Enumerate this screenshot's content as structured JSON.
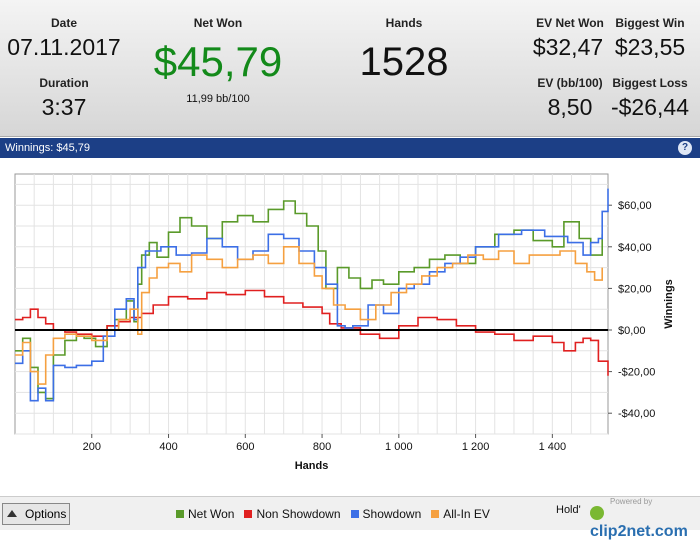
{
  "summary": {
    "date_label": "Date",
    "date_value": "07.11.2017",
    "duration_label": "Duration",
    "duration_value": "3:37",
    "net_won_label": "Net Won",
    "net_won_value": "$45,79",
    "net_won_sub": "11,99 bb/100",
    "hands_label": "Hands",
    "hands_value": "1528",
    "ev_net_won_label": "EV Net Won",
    "ev_net_won_value": "$32,47",
    "biggest_win_label": "Biggest Win",
    "biggest_win_value": "$23,55",
    "ev_bb_label": "EV (bb/100)",
    "ev_bb_value": "8,50",
    "biggest_loss_label": "Biggest Loss",
    "biggest_loss_value": "-$26,44",
    "net_won_color": "#138a1a"
  },
  "titlebar": {
    "text": "Winnings:  $45,79",
    "help": "?"
  },
  "footer": {
    "options_label": "Options",
    "holdem_label": "Hold'",
    "powered_label": "Powered by",
    "brand_label": "clip2net.com"
  },
  "chart_data": {
    "type": "line",
    "xlabel": "Hands",
    "ylabel": "Winnings",
    "xlim": [
      0,
      1545
    ],
    "ylim": [
      -50,
      75
    ],
    "x_ticks": [
      200,
      400,
      600,
      800,
      1000,
      1200,
      1400
    ],
    "x_tick_labels": [
      "200",
      "400",
      "600",
      "800",
      "1 000",
      "1 200",
      "1 400"
    ],
    "y_ticks": [
      60,
      40,
      20,
      0,
      -20,
      -40
    ],
    "y_tick_labels": [
      "$60,00",
      "$40,00",
      "$20,00",
      "$0,00",
      "-$20,00",
      "-$40,00"
    ],
    "grid": true,
    "legend_position": "bottom",
    "series": [
      {
        "name": "Net Won",
        "color": "#5a9a2a",
        "x": [
          0,
          20,
          40,
          60,
          80,
          100,
          130,
          160,
          180,
          210,
          240,
          260,
          290,
          310,
          320,
          330,
          350,
          370,
          400,
          430,
          460,
          500,
          540,
          580,
          620,
          660,
          700,
          730,
          760,
          790,
          810,
          840,
          870,
          900,
          930,
          960,
          1000,
          1040,
          1080,
          1120,
          1160,
          1200,
          1250,
          1300,
          1350,
          1400,
          1430,
          1470,
          1500,
          1530
        ],
        "y": [
          -10,
          -4,
          -18,
          -30,
          -33,
          -12,
          -5,
          -3,
          -4,
          -8,
          2,
          5,
          14,
          4,
          22,
          36,
          42,
          35,
          47,
          54,
          50,
          44,
          52,
          55,
          52,
          58,
          62,
          56,
          50,
          38,
          20,
          30,
          25,
          20,
          24,
          22,
          28,
          30,
          34,
          36,
          32,
          40,
          46,
          48,
          43,
          40,
          52,
          44,
          36,
          46
        ]
      },
      {
        "name": "Non Showdown",
        "color": "#e02020",
        "x": [
          0,
          20,
          40,
          60,
          80,
          100,
          130,
          160,
          200,
          240,
          270,
          300,
          330,
          360,
          400,
          450,
          500,
          550,
          600,
          650,
          700,
          750,
          800,
          820,
          850,
          900,
          950,
          1000,
          1050,
          1100,
          1150,
          1200,
          1250,
          1300,
          1350,
          1400,
          1430,
          1460,
          1480,
          1500,
          1520,
          1545
        ],
        "y": [
          5,
          6,
          10,
          6,
          3,
          0,
          -1,
          -2,
          -3,
          2,
          4,
          6,
          8,
          12,
          16,
          15,
          18,
          17,
          19,
          16,
          13,
          11,
          8,
          3,
          1,
          -2,
          -4,
          2,
          6,
          5,
          2,
          -1,
          -2,
          -5,
          -3,
          -6,
          -10,
          -6,
          -4,
          -5,
          -15,
          -22
        ]
      },
      {
        "name": "Showdown",
        "color": "#3c6fe6",
        "x": [
          0,
          20,
          40,
          60,
          80,
          100,
          130,
          160,
          200,
          230,
          260,
          290,
          310,
          320,
          340,
          380,
          420,
          460,
          500,
          540,
          580,
          620,
          660,
          700,
          740,
          780,
          810,
          840,
          860,
          880,
          920,
          960,
          1000,
          1040,
          1080,
          1120,
          1160,
          1200,
          1260,
          1320,
          1380,
          1440,
          1480,
          1500,
          1520,
          1530,
          1545
        ],
        "y": [
          -16,
          -10,
          -34,
          -28,
          -34,
          -17,
          -18,
          -17,
          -15,
          -3,
          10,
          15,
          5,
          30,
          38,
          40,
          36,
          37,
          44,
          40,
          34,
          38,
          46,
          44,
          38,
          30,
          22,
          2,
          1,
          2,
          12,
          8,
          20,
          22,
          28,
          32,
          35,
          40,
          46,
          48,
          45,
          42,
          36,
          42,
          44,
          57,
          68
        ]
      },
      {
        "name": "All-In EV",
        "color": "#f5a040",
        "x": [
          0,
          20,
          40,
          60,
          80,
          100,
          130,
          160,
          200,
          240,
          270,
          300,
          320,
          330,
          350,
          370,
          400,
          430,
          460,
          500,
          540,
          580,
          620,
          660,
          700,
          740,
          780,
          800,
          830,
          860,
          900,
          940,
          980,
          1020,
          1060,
          1100,
          1140,
          1180,
          1220,
          1260,
          1300,
          1340,
          1380,
          1420,
          1460,
          1490,
          1510,
          1530
        ],
        "y": [
          -12,
          -6,
          -20,
          -26,
          -12,
          -4,
          -2,
          -3,
          -5,
          0,
          5,
          10,
          -2,
          18,
          25,
          30,
          32,
          28,
          36,
          34,
          30,
          34,
          36,
          32,
          40,
          32,
          26,
          20,
          12,
          10,
          5,
          12,
          18,
          22,
          26,
          30,
          32,
          36,
          34,
          38,
          32,
          36,
          36,
          38,
          32,
          28,
          24,
          30
        ]
      }
    ],
    "baseline_y": 0
  }
}
